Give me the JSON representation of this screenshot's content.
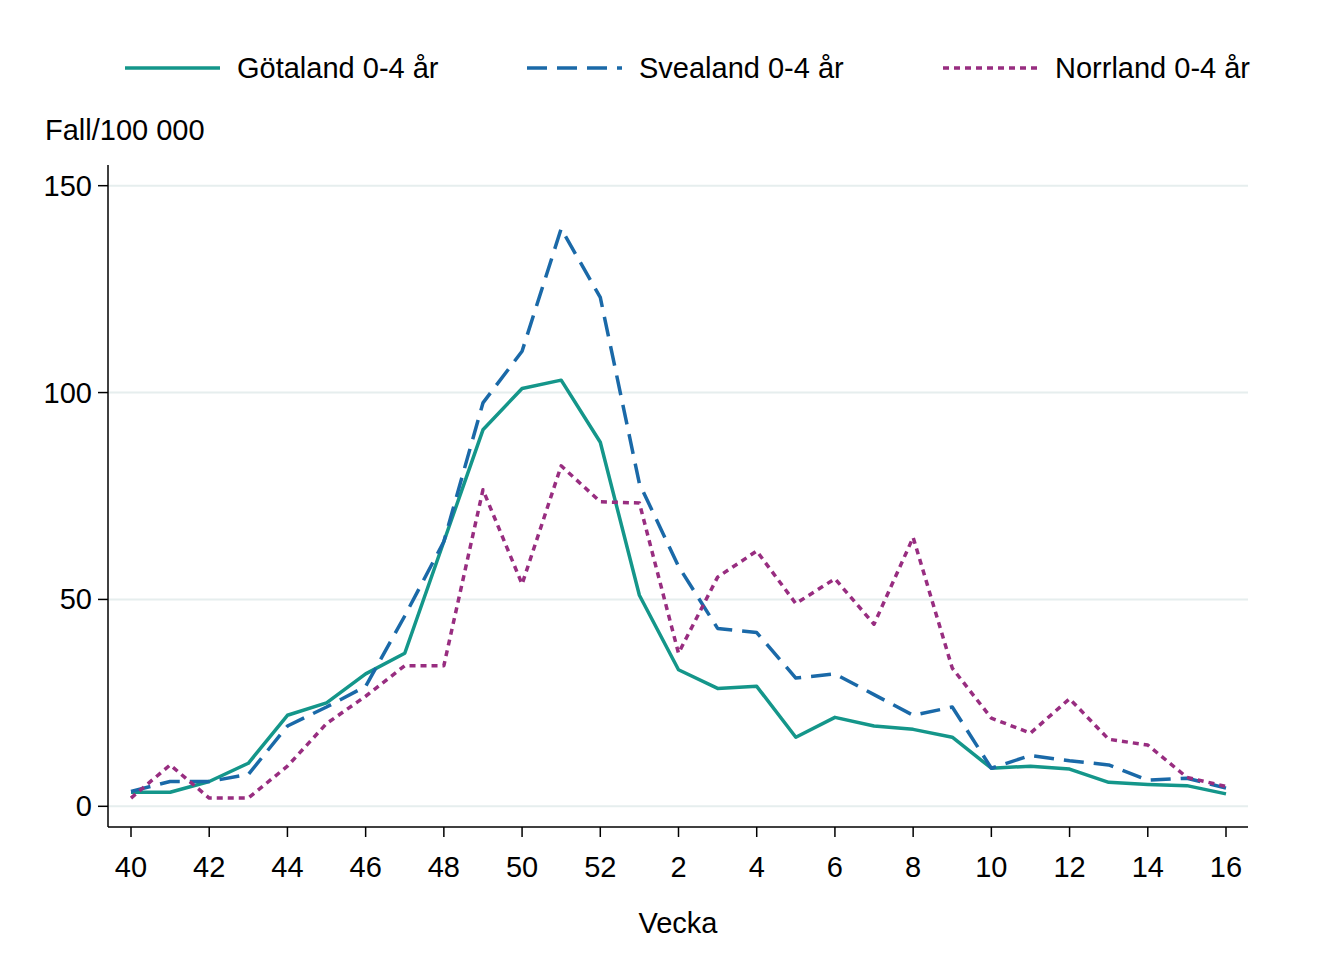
{
  "chart_data": {
    "type": "line",
    "y_label": "Fall/100 000",
    "x_label": "Vecka",
    "categories": [
      "40",
      null,
      "42",
      null,
      "44",
      null,
      "46",
      null,
      "48",
      null,
      "50",
      null,
      "52",
      null,
      "2",
      null,
      "4",
      null,
      "6",
      null,
      "8",
      null,
      "10",
      null,
      "12",
      null,
      "14",
      null,
      "16"
    ],
    "series": [
      {
        "name": "Götaland 0-4 år",
        "color": "#14968a",
        "line_style": "solid",
        "values": [
          3.4,
          3.4,
          6,
          10.4,
          22,
          25,
          32,
          37,
          64,
          91,
          101,
          103,
          88,
          51,
          33,
          28.5,
          29,
          16.7,
          21.5,
          19.4,
          18.6,
          16.7,
          9.2,
          9.7,
          9,
          5.8,
          5.3,
          5,
          3
        ]
      },
      {
        "name": "Svealand 0-4 år",
        "color": "#1a69a8",
        "line_style": "dashed",
        "values": [
          3.6,
          6,
          6,
          7.7,
          19.4,
          24,
          29,
          46,
          64,
          97.5,
          110,
          139.6,
          123,
          78,
          58,
          43,
          42,
          31,
          32,
          27,
          22,
          24,
          9.2,
          12.3,
          11,
          10,
          6.3,
          6.8,
          4.4
        ]
      },
      {
        "name": "Norrland 0-4 år",
        "color": "#982d80",
        "line_style": "dotted",
        "values": [
          2,
          10,
          2,
          2,
          9.7,
          20,
          26.6,
          34,
          34,
          76.5,
          53.7,
          82.3,
          73.6,
          73.3,
          37,
          55.4,
          61.7,
          49,
          55,
          44,
          65,
          33.4,
          21.3,
          17.7,
          26,
          16.2,
          14.8,
          7,
          4.8
        ]
      }
    ],
    "ylim": [
      -5,
      155
    ],
    "yticks": [
      0,
      50,
      100,
      150
    ],
    "grid": true,
    "legend": "top"
  }
}
